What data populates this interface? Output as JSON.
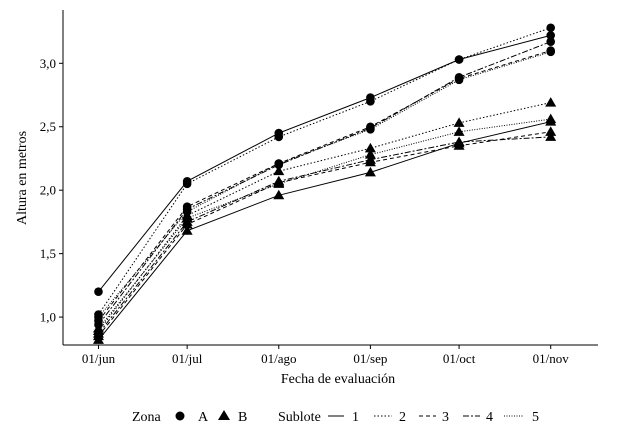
{
  "chart_data": {
    "type": "line",
    "xlabel": "Fecha de evaluación",
    "ylabel": "Altura en metros",
    "x_ticks": [
      "01/jun",
      "01/jul",
      "01/ago",
      "01/sep",
      "01/oct",
      "01/nov"
    ],
    "y_ticks": [
      "1,0",
      "1,5",
      "2,0",
      "2,5",
      "3,0"
    ],
    "xlim": [
      "2021-05-20",
      "2021-11-17"
    ],
    "ylim": [
      0.78,
      3.42
    ],
    "grid": false,
    "legend_position": "bottom",
    "legend": {
      "zona_title": "Zona",
      "zona_items": [
        {
          "label": "A",
          "marker": "circle"
        },
        {
          "label": "B",
          "marker": "triangle"
        }
      ],
      "sublote_title": "Sublote",
      "sublote_items": [
        {
          "label": "1",
          "dash": "solid"
        },
        {
          "label": "2",
          "dash": "dotted"
        },
        {
          "label": "3",
          "dash": "dashed"
        },
        {
          "label": "4",
          "dash": "longdash"
        },
        {
          "label": "5",
          "dash": "finedot"
        }
      ]
    },
    "x": [
      "2021-06-01",
      "2021-07-01",
      "2021-08-01",
      "2021-09-01",
      "2021-10-01",
      "2021-11-01"
    ],
    "series": [
      {
        "zona": "A",
        "sublote": "1",
        "values": [
          1.2,
          2.07,
          2.45,
          2.73,
          3.03,
          3.22
        ]
      },
      {
        "zona": "A",
        "sublote": "2",
        "values": [
          1.02,
          2.05,
          2.42,
          2.7,
          3.03,
          3.28
        ]
      },
      {
        "zona": "A",
        "sublote": "3",
        "values": [
          0.97,
          1.87,
          2.21,
          2.5,
          2.88,
          3.1
        ]
      },
      {
        "zona": "A",
        "sublote": "4",
        "values": [
          0.94,
          1.85,
          2.2,
          2.49,
          2.89,
          3.17
        ]
      },
      {
        "zona": "A",
        "sublote": "5",
        "values": [
          1.0,
          1.83,
          2.21,
          2.48,
          2.87,
          3.09
        ]
      },
      {
        "zona": "B",
        "sublote": "1",
        "values": [
          0.82,
          1.68,
          1.96,
          2.14,
          2.37,
          2.54
        ]
      },
      {
        "zona": "B",
        "sublote": "2",
        "values": [
          0.89,
          1.8,
          2.15,
          2.33,
          2.53,
          2.69
        ]
      },
      {
        "zona": "B",
        "sublote": "3",
        "values": [
          0.85,
          1.73,
          2.06,
          2.22,
          2.35,
          2.46
        ]
      },
      {
        "zona": "B",
        "sublote": "4",
        "values": [
          0.87,
          1.75,
          2.07,
          2.24,
          2.38,
          2.42
        ]
      },
      {
        "zona": "B",
        "sublote": "5",
        "values": [
          0.91,
          1.78,
          2.05,
          2.28,
          2.46,
          2.56
        ]
      }
    ]
  }
}
